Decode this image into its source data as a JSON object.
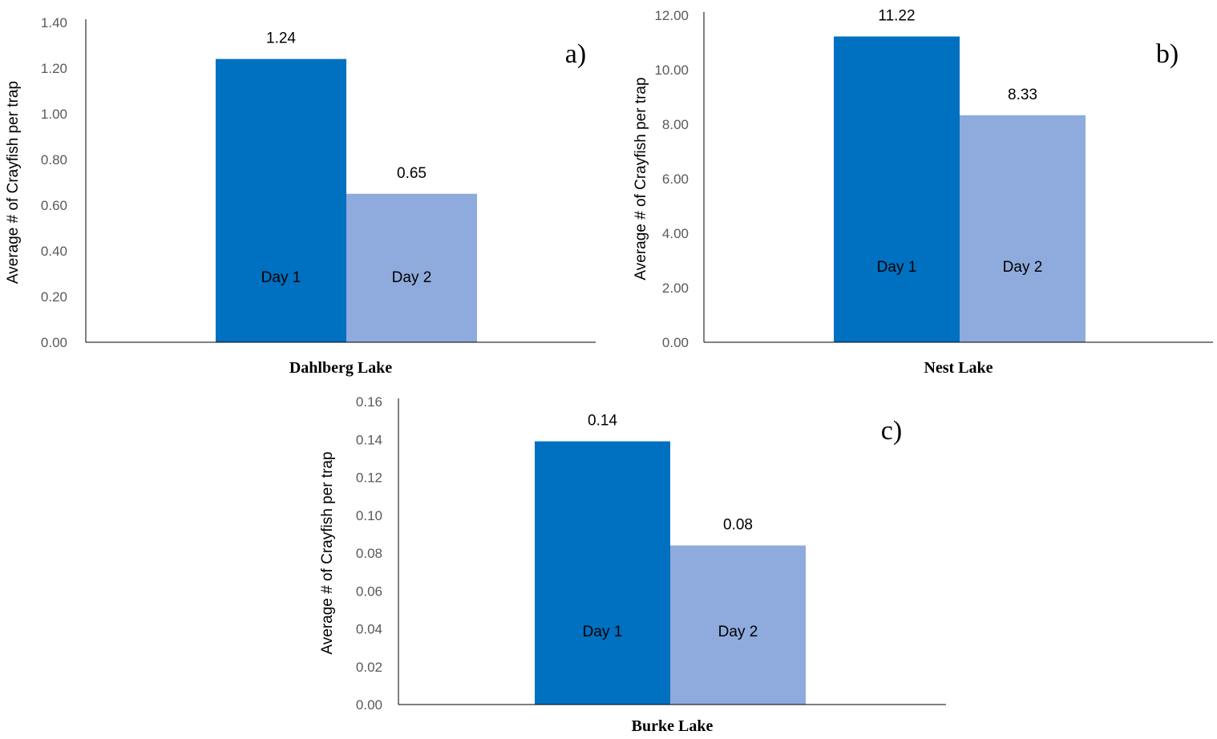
{
  "chart_data": [
    {
      "type": "bar",
      "panel_label": "a)",
      "xlabel": "Dahlberg Lake",
      "ylabel": "Average # of Crayfish per trap",
      "ylim": [
        0,
        1.4
      ],
      "yticks": [
        "0.00",
        "0.20",
        "0.40",
        "0.60",
        "0.80",
        "1.00",
        "1.20",
        "1.40"
      ],
      "grid": false,
      "categories": [
        "Day 1",
        "Day 2"
      ],
      "values": [
        1.24,
        0.65
      ],
      "data_labels": [
        "1.24",
        "0.65"
      ],
      "colors": [
        "#0070C0",
        "#8FAADC"
      ]
    },
    {
      "type": "bar",
      "panel_label": "b)",
      "xlabel": "Nest Lake",
      "ylabel": "Average # of Crayfish per trap",
      "ylim": [
        0,
        12
      ],
      "yticks": [
        "0.00",
        "2.00",
        "4.00",
        "6.00",
        "8.00",
        "10.00",
        "12.00"
      ],
      "grid": false,
      "categories": [
        "Day 1",
        "Day 2"
      ],
      "values": [
        11.22,
        8.33
      ],
      "data_labels": [
        "11.22",
        "8.33"
      ],
      "colors": [
        "#0070C0",
        "#8FAADC"
      ]
    },
    {
      "type": "bar",
      "panel_label": "c)",
      "xlabel": "Burke Lake",
      "ylabel": "Average # of Crayfish per trap",
      "ylim": [
        0,
        0.16
      ],
      "yticks": [
        "0.00",
        "0.02",
        "0.04",
        "0.06",
        "0.08",
        "0.10",
        "0.12",
        "0.14",
        "0.16"
      ],
      "grid": false,
      "categories": [
        "Day 1",
        "Day 2"
      ],
      "values": [
        0.139,
        0.084
      ],
      "data_labels": [
        "0.14",
        "0.08"
      ],
      "colors": [
        "#0070C0",
        "#8FAADC"
      ]
    }
  ]
}
